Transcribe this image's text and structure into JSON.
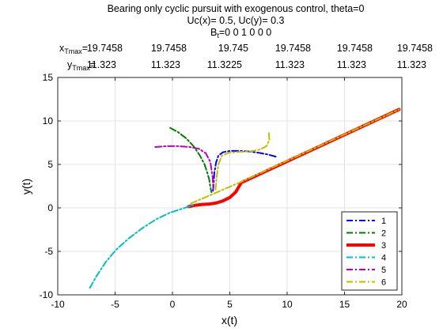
{
  "chart_data": {
    "type": "line",
    "title_lines": [
      "Bearing only cyclic pursuit with exogenous control, theta=0",
      "Uc(x)= 0.5, Uc(y)= 0.3"
    ],
    "bt": {
      "base": "B",
      "sub": "t",
      "text": "=0  0  1  0  0  0"
    },
    "tmax": {
      "x": {
        "base": "x",
        "sub": "Tmax",
        "values": [
          "19.7458",
          "19.7458",
          "19.745",
          "19.7458",
          "19.7458",
          "19.7458"
        ]
      },
      "y": {
        "base": "y",
        "sub": "Tmax",
        "values": [
          "11.323",
          "11.323",
          "11.3225",
          "11.323",
          "11.323",
          "11.323"
        ]
      }
    },
    "xlabel": "x(t)",
    "ylabel": "y(t)",
    "xlim": [
      -10,
      20
    ],
    "ylim": [
      -10,
      15
    ],
    "xticks": [
      -10,
      -5,
      0,
      5,
      10,
      15,
      20
    ],
    "yticks": [
      -10,
      -5,
      0,
      5,
      10,
      15
    ],
    "grid": true,
    "legend_position": "bottom-right",
    "series": [
      {
        "name": "1",
        "color": "#0000ff",
        "style": "dashdot",
        "width": 2,
        "x": [
          9.0,
          8.3,
          7.5,
          6.6,
          5.8,
          5.0,
          4.4,
          4.0,
          3.8,
          3.65,
          3.6,
          3.55,
          3.5
        ],
        "y": [
          5.9,
          6.15,
          6.35,
          6.5,
          6.55,
          6.55,
          6.4,
          6.0,
          5.2,
          4.0,
          3.0,
          2.2,
          1.75
        ]
      },
      {
        "name": "2",
        "color": "#007f00",
        "style": "dashdot",
        "width": 2,
        "x": [
          -0.2,
          0.5,
          1.2,
          1.9,
          2.4,
          2.8,
          3.0,
          3.2,
          3.3,
          3.4
        ],
        "y": [
          9.2,
          8.7,
          8.0,
          7.0,
          6.0,
          5.0,
          4.2,
          3.3,
          2.4,
          1.8
        ]
      },
      {
        "name": "3",
        "color": "#ff0000",
        "style": "solid",
        "width": 4,
        "x": [
          1.4,
          2.0,
          2.6,
          3.2,
          3.8,
          4.4,
          5.0,
          5.5,
          6.0,
          19.75
        ],
        "y": [
          0.15,
          0.3,
          0.4,
          0.45,
          0.55,
          0.8,
          1.2,
          1.8,
          2.9,
          11.32
        ]
      },
      {
        "name": "4",
        "color": "#00bfbf",
        "style": "dashdot",
        "width": 2,
        "x": [
          -7.2,
          -6.6,
          -5.8,
          -4.9,
          -3.8,
          -2.6,
          -1.4,
          -0.3,
          0.6,
          1.3,
          1.8
        ],
        "y": [
          -9.2,
          -7.8,
          -6.2,
          -4.8,
          -3.5,
          -2.3,
          -1.3,
          -0.6,
          -0.2,
          0.1,
          0.35
        ]
      },
      {
        "name": "5",
        "color": "#bf00bf",
        "style": "dashdot",
        "width": 2,
        "x": [
          -1.5,
          -0.5,
          0.5,
          1.5,
          2.3,
          2.9,
          3.3,
          3.5,
          3.55
        ],
        "y": [
          7.0,
          7.1,
          7.1,
          7.0,
          6.8,
          6.3,
          5.3,
          3.5,
          2.2
        ]
      },
      {
        "name": "6",
        "color": "#bfbf00",
        "style": "dashdot",
        "width": 2,
        "x": [
          1.6,
          6.0,
          19.75
        ],
        "y": [
          0.5,
          3.0,
          11.32
        ],
        "extra": {
          "x": [
            8.4,
            8.45,
            8.2,
            7.6,
            6.8,
            5.8,
            4.9,
            4.3,
            4.0,
            3.85,
            3.75
          ],
          "y": [
            8.6,
            7.8,
            7.1,
            6.7,
            6.5,
            6.45,
            6.35,
            6.0,
            5.0,
            3.5,
            2.1
          ]
        }
      }
    ]
  }
}
